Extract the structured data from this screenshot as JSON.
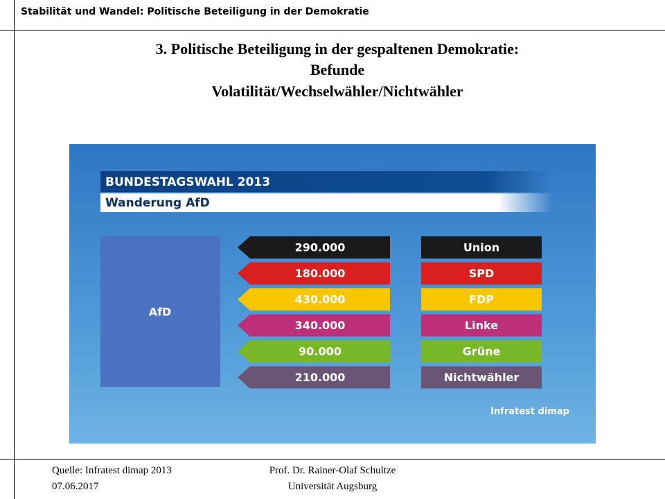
{
  "header": {
    "title": "Stabilität und Wandel: Politische Beteiligung in der Demokratie"
  },
  "title": [
    "3. Politische Beteiligung in der gespaltenen Demokratie:",
    "Befunde",
    "Volatilität/Wechselwähler/Nichtwähler"
  ],
  "infographic": {
    "banner": "BUNDESTAGSWAHL 2013",
    "subtitle": "Wanderung AfD",
    "target": "AfD",
    "source": "Infratest dimap",
    "flows": [
      {
        "amount": "290.000",
        "party": "Union",
        "color": "#1a1a1a"
      },
      {
        "amount": "180.000",
        "party": "SPD",
        "color": "#d9201f"
      },
      {
        "amount": "430.000",
        "party": "FDP",
        "color": "#f7c600"
      },
      {
        "amount": "340.000",
        "party": "Linke",
        "color": "#bd2f78"
      },
      {
        "amount": "90.000",
        "party": "Grüne",
        "color": "#78b828"
      },
      {
        "amount": "210.000",
        "party": "Nichtwähler",
        "color": "#6a5576"
      }
    ]
  },
  "footer": {
    "source": "Quelle:  Infratest dimap 2013",
    "date": "07.06.2017",
    "author": "Prof. Dr. Rainer-Olaf Schultze",
    "institution": "Universität Augsburg"
  }
}
